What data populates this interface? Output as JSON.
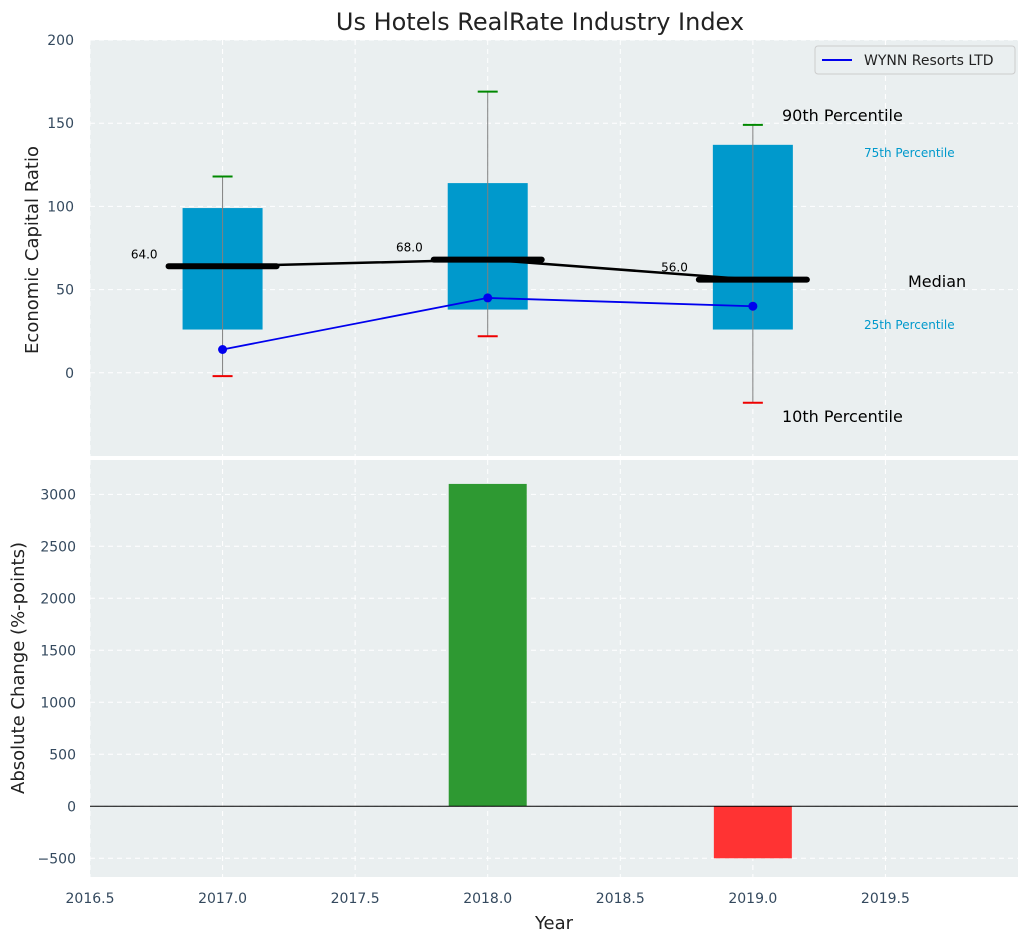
{
  "chart_data": [
    {
      "type": "box",
      "title": "Us Hotels RealRate Industry Index",
      "ylabel": "Economic Capital Ratio",
      "ylim": [
        -50,
        200
      ],
      "yticks": [
        "0",
        "50",
        "100",
        "150",
        "200"
      ],
      "xlim": [
        2016.5,
        2020
      ],
      "grid": true,
      "legend": {
        "position": "top-right",
        "entries": [
          "WYNN Resorts LTD"
        ]
      },
      "colors": {
        "box": "#0099cc",
        "median": "#000000",
        "series": "#0000ee",
        "p90": "#008800",
        "p10": "#ee0000",
        "whisker": "#808080",
        "background": "#eaeff0"
      },
      "boxes": [
        {
          "x": 2017,
          "p10": -2,
          "p25": 26,
          "median": 64,
          "p75": 99,
          "p90": 118,
          "median_label": "64.0"
        },
        {
          "x": 2018,
          "p10": 22,
          "p25": 38,
          "median": 68,
          "p75": 114,
          "p90": 169,
          "median_label": "68.0"
        },
        {
          "x": 2019,
          "p10": -18,
          "p25": 26,
          "median": 56,
          "p75": 137,
          "p90": 149,
          "median_label": "56.0"
        }
      ],
      "series": [
        {
          "name": "WYNN Resorts LTD",
          "x": [
            2017,
            2018,
            2019
          ],
          "values": [
            14,
            45,
            40
          ]
        }
      ],
      "annotations": {
        "p90": "90th Percentile",
        "p75": "75th Percentile",
        "median": "Median",
        "p25": "25th Percentile",
        "p10": "10th Percentile"
      }
    },
    {
      "type": "bar",
      "xlabel": "Year",
      "ylabel": "Absolute Change (%-points)",
      "ylim": [
        -680,
        3330
      ],
      "yticks": [
        "−500",
        "0",
        "500",
        "1000",
        "1500",
        "2000",
        "2500",
        "3000"
      ],
      "xticks": [
        "2016.5",
        "2017.0",
        "2017.5",
        "2018.0",
        "2018.5",
        "2019.0",
        "2019.5"
      ],
      "xlim": [
        2016.5,
        2020
      ],
      "grid": true,
      "bars": [
        {
          "x": 2018,
          "value": 3100,
          "color": "#2e9932"
        },
        {
          "x": 2019,
          "value": -500,
          "color": "#ff3333"
        }
      ]
    }
  ]
}
